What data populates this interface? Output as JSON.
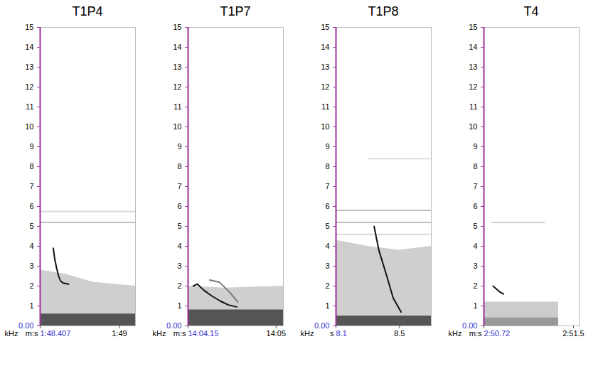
{
  "chart_data": [
    {
      "type": "line",
      "title": "T1P4",
      "x_label": "m:s",
      "y_label": "kHz",
      "xlim": [
        108.407,
        109.12
      ],
      "ylim": [
        0,
        15
      ],
      "xticks": [
        {
          "value": 108.407,
          "label": "1:48.407"
        },
        {
          "value": 109,
          "label": "1:49"
        }
      ],
      "yticks": [
        {
          "value": 0,
          "label": "0.00"
        },
        1,
        2,
        3,
        4,
        5,
        6,
        7,
        8,
        9,
        10,
        11,
        12,
        13,
        14,
        15
      ],
      "series": [
        {
          "type": "area",
          "color": "#cfcfcf",
          "values": [
            [
              108.407,
              2.8
            ],
            [
              108.6,
              2.6
            ],
            [
              108.8,
              2.2
            ],
            [
              109.12,
              2.0
            ]
          ]
        },
        {
          "type": "area",
          "color": "#555555",
          "values": [
            [
              108.407,
              0.6
            ],
            [
              109.12,
              0.6
            ]
          ]
        },
        {
          "type": "line",
          "color": "#bdbdbd",
          "values": [
            [
              108.407,
              5.2
            ],
            [
              109.12,
              5.2
            ]
          ]
        },
        {
          "type": "line",
          "color": "#d9d9d9",
          "values": [
            [
              108.407,
              5.75
            ],
            [
              109.12,
              5.75
            ]
          ]
        },
        {
          "type": "line",
          "color": "#111111",
          "values": [
            [
              108.505,
              3.9
            ],
            [
              108.515,
              3.4
            ],
            [
              108.53,
              2.9
            ],
            [
              108.545,
              2.5
            ],
            [
              108.56,
              2.25
            ],
            [
              108.58,
              2.15
            ],
            [
              108.62,
              2.1
            ]
          ]
        }
      ]
    },
    {
      "type": "line",
      "title": "T1P7",
      "x_label": "m:s",
      "y_label": "kHz",
      "xlim": [
        844.15,
        845.07
      ],
      "ylim": [
        0,
        15
      ],
      "xticks": [
        {
          "value": 844.15,
          "label": "14:04.15"
        },
        {
          "value": 845,
          "label": "14:05"
        }
      ],
      "yticks": [
        {
          "value": 0,
          "label": "0.00"
        },
        1,
        2,
        3,
        4,
        5,
        6,
        7,
        8,
        9,
        10,
        11,
        12,
        13,
        14,
        15
      ],
      "series": [
        {
          "type": "area",
          "color": "#cfcfcf",
          "values": [
            [
              844.15,
              2.0
            ],
            [
              844.5,
              1.9
            ],
            [
              845.07,
              2.0
            ]
          ]
        },
        {
          "type": "area",
          "color": "#555555",
          "values": [
            [
              844.15,
              0.8
            ],
            [
              845.07,
              0.8
            ]
          ]
        },
        {
          "type": "line",
          "color": "#777777",
          "values": [
            [
              844.36,
              2.3
            ],
            [
              844.45,
              2.2
            ],
            [
              844.55,
              1.7
            ],
            [
              844.63,
              1.2
            ]
          ]
        },
        {
          "type": "line",
          "color": "#111111",
          "values": [
            [
              844.2,
              2.0
            ],
            [
              844.24,
              2.1
            ],
            [
              844.3,
              1.8
            ],
            [
              844.38,
              1.5
            ],
            [
              844.46,
              1.25
            ],
            [
              844.54,
              1.05
            ],
            [
              844.62,
              0.95
            ]
          ]
        }
      ]
    },
    {
      "type": "line",
      "title": "T1P8",
      "x_label": "s",
      "y_label": "kHz",
      "xlim": [
        8.1,
        8.7
      ],
      "ylim": [
        0,
        15
      ],
      "xticks": [
        8.1,
        8.5
      ],
      "yticks": [
        {
          "value": 0,
          "label": "0.00"
        },
        1,
        2,
        3,
        4,
        5,
        6,
        7,
        8,
        9,
        10,
        11,
        12,
        13,
        14,
        15
      ],
      "series": [
        {
          "type": "area",
          "color": "#cfcfcf",
          "values": [
            [
              8.1,
              4.3
            ],
            [
              8.3,
              4.0
            ],
            [
              8.5,
              3.8
            ],
            [
              8.7,
              4.0
            ]
          ]
        },
        {
          "type": "area",
          "color": "#555555",
          "values": [
            [
              8.1,
              0.5
            ],
            [
              8.7,
              0.5
            ]
          ]
        },
        {
          "type": "line",
          "color": "#d9d9d9",
          "values": [
            [
              8.1,
              4.6
            ],
            [
              8.7,
              4.6
            ]
          ]
        },
        {
          "type": "line",
          "color": "#bdbdbd",
          "values": [
            [
              8.1,
              5.2
            ],
            [
              8.7,
              5.2
            ]
          ]
        },
        {
          "type": "line",
          "color": "#bdbdbd",
          "values": [
            [
              8.1,
              5.8
            ],
            [
              8.7,
              5.8
            ]
          ]
        },
        {
          "type": "line",
          "color": "#e0e0e0",
          "values": [
            [
              8.3,
              8.4
            ],
            [
              8.7,
              8.4
            ]
          ]
        },
        {
          "type": "line",
          "color": "#111111",
          "values": [
            [
              8.34,
              5.0
            ],
            [
              8.37,
              3.8
            ],
            [
              8.42,
              2.5
            ],
            [
              8.46,
              1.4
            ],
            [
              8.51,
              0.7
            ]
          ]
        }
      ]
    },
    {
      "type": "line",
      "title": "T4",
      "x_label": "m:s",
      "y_label": "kHz",
      "xlim": [
        170.72,
        171.55
      ],
      "ylim": [
        0,
        15
      ],
      "xticks": [
        {
          "value": 170.72,
          "label": "2:50.72"
        },
        {
          "value": 171.5,
          "label": "2:51.5"
        }
      ],
      "yticks": [
        {
          "value": 0,
          "label": "0.00"
        },
        1,
        2,
        3,
        4,
        5,
        6,
        7,
        8,
        9,
        10,
        11,
        12,
        13,
        14,
        15
      ],
      "series": [
        {
          "type": "area",
          "color": "#cccccc",
          "values": [
            [
              170.72,
              1.2
            ],
            [
              171.37,
              1.2
            ]
          ]
        },
        {
          "type": "area",
          "color": "#999999",
          "values": [
            [
              170.72,
              0.4
            ],
            [
              171.37,
              0.4
            ]
          ]
        },
        {
          "type": "line",
          "color": "#d0d0d0",
          "values": [
            [
              170.79,
              5.2
            ],
            [
              171.25,
              5.2
            ]
          ]
        },
        {
          "type": "line",
          "color": "#111111",
          "values": [
            [
              170.8,
              2.0
            ],
            [
              170.83,
              1.85
            ],
            [
              170.86,
              1.7
            ],
            [
              170.89,
              1.6
            ]
          ]
        }
      ]
    }
  ]
}
